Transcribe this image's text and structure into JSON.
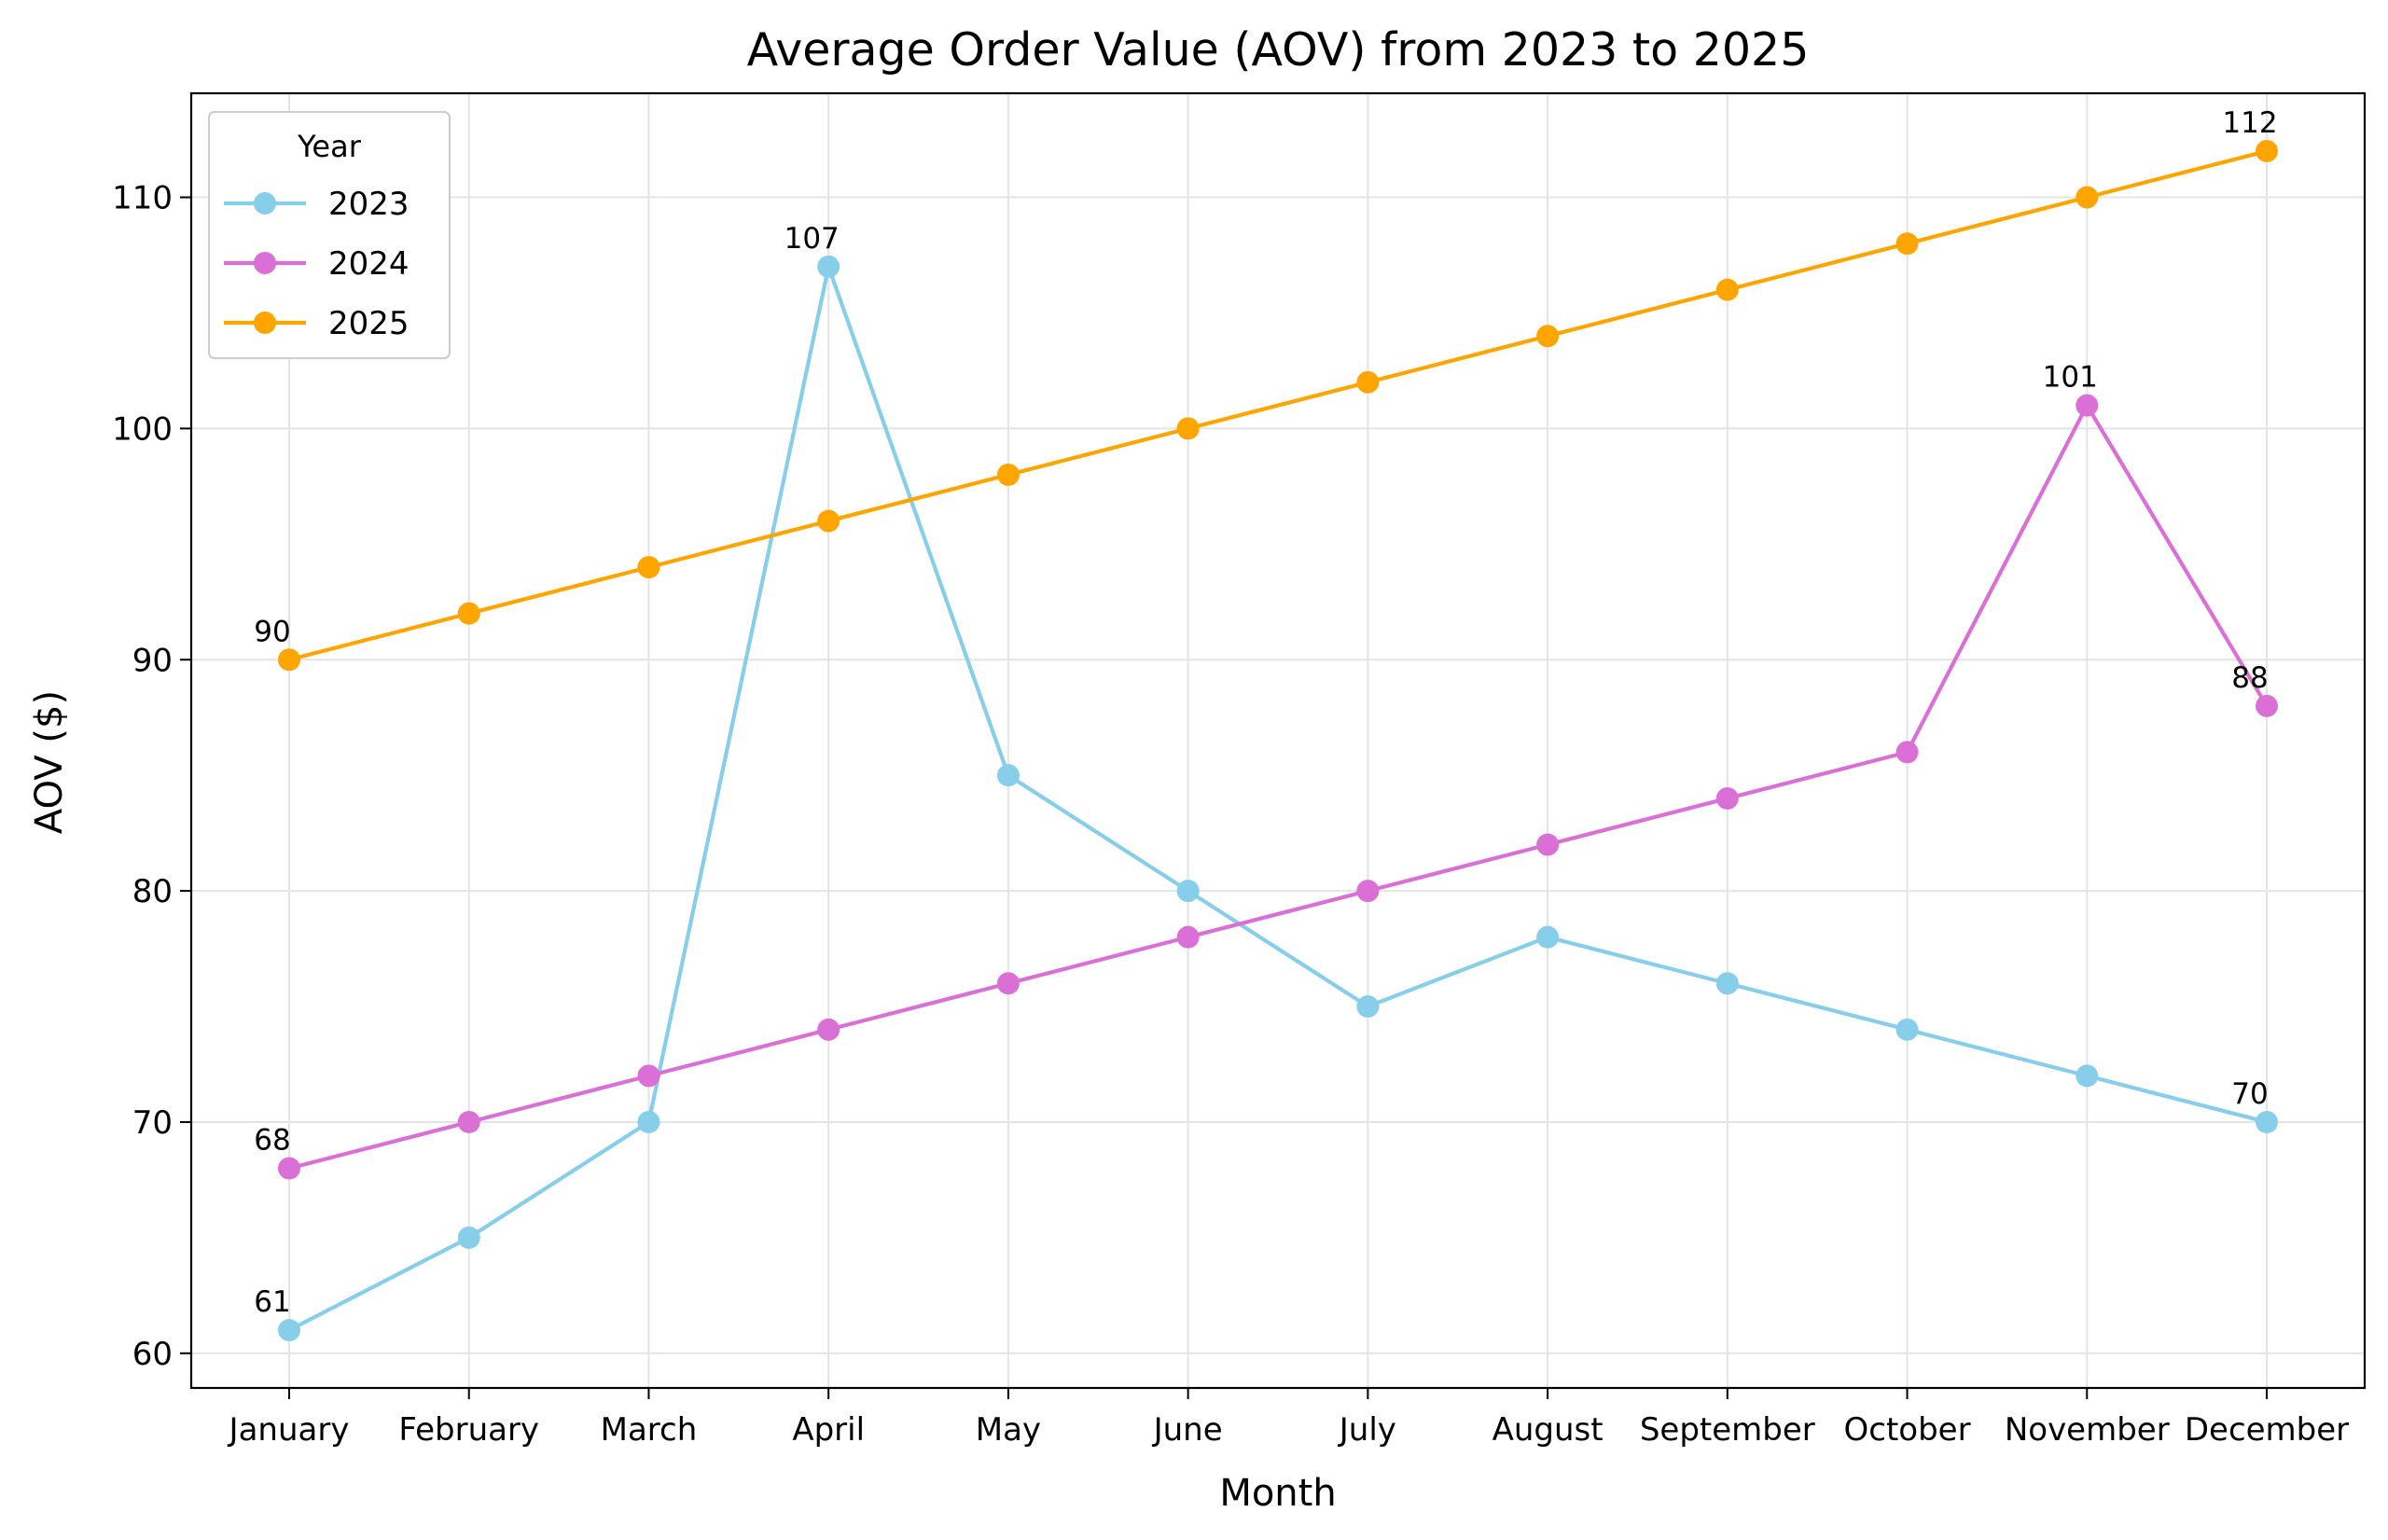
{
  "chart_data": {
    "type": "line",
    "title": "Average Order Value (AOV) from 2023 to 2025",
    "xlabel": "Month",
    "ylabel": "AOV ($)",
    "categories": [
      "January",
      "February",
      "March",
      "April",
      "May",
      "June",
      "July",
      "August",
      "September",
      "October",
      "November",
      "December"
    ],
    "ylim": [
      58.5,
      114.5
    ],
    "yticks": [
      60,
      70,
      80,
      90,
      100,
      110
    ],
    "grid": true,
    "legend": {
      "title": "Year",
      "position": "upper-left"
    },
    "series": [
      {
        "name": "2023",
        "color": "#87CEEB",
        "values": [
          61,
          65,
          70,
          107,
          85,
          80,
          75,
          78,
          76,
          74,
          72,
          70
        ],
        "labeled_indices": [
          0,
          3,
          11
        ]
      },
      {
        "name": "2024",
        "color": "#DA70D6",
        "values": [
          68,
          70,
          72,
          74,
          76,
          78,
          80,
          82,
          84,
          86,
          101,
          88
        ],
        "labeled_indices": [
          0,
          10,
          11
        ]
      },
      {
        "name": "2025",
        "color": "#FFA500",
        "values": [
          90,
          92,
          94,
          96,
          98,
          100,
          102,
          104,
          106,
          108,
          110,
          112
        ],
        "labeled_indices": [
          0,
          11
        ]
      }
    ]
  }
}
